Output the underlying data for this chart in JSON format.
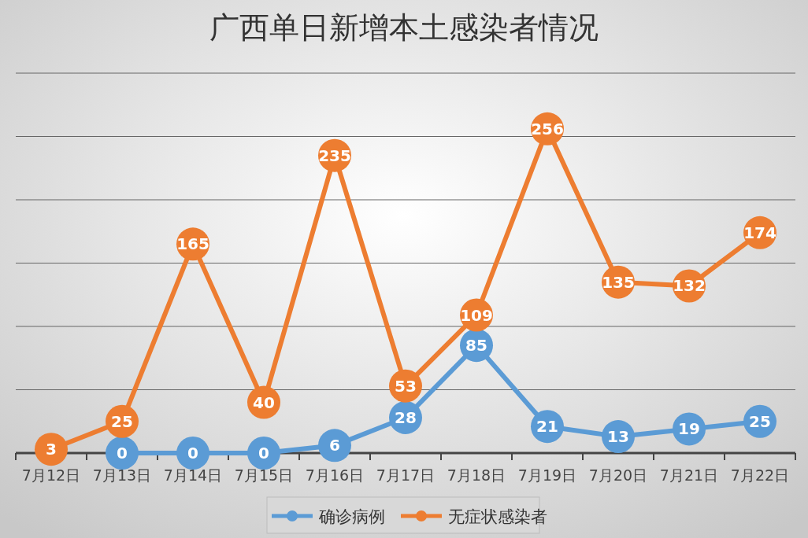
{
  "chart_data": {
    "type": "line",
    "title": "广西单日新增本土感染者情况",
    "categories": [
      "7月12日",
      "7月13日",
      "7月14日",
      "7月15日",
      "7月16日",
      "7月17日",
      "7月18日",
      "7月19日",
      "7月20日",
      "7月21日",
      "7月22日"
    ],
    "series": [
      {
        "name": "确诊病例",
        "color": "#5b9bd5",
        "values": [
          null,
          0,
          0,
          0,
          6,
          28,
          85,
          21,
          13,
          19,
          25
        ]
      },
      {
        "name": "无症状感染者",
        "color": "#ed7d31",
        "values": [
          3,
          25,
          165,
          40,
          235,
          53,
          109,
          256,
          135,
          132,
          174
        ]
      }
    ],
    "ylim": [
      0,
      300
    ],
    "yticks": [
      {
        "value": 0,
        "label": null
      },
      {
        "value": 50,
        "label": null
      },
      {
        "value": 100,
        "label": null
      },
      {
        "value": 150,
        "label": null
      },
      {
        "value": 200,
        "label": null
      },
      {
        "value": 250,
        "label": null
      },
      {
        "value": 300,
        "label": null
      }
    ],
    "tick_labels": "x",
    "grid": "y",
    "legend": "bottom",
    "marker": "circle",
    "data_labels": true
  }
}
